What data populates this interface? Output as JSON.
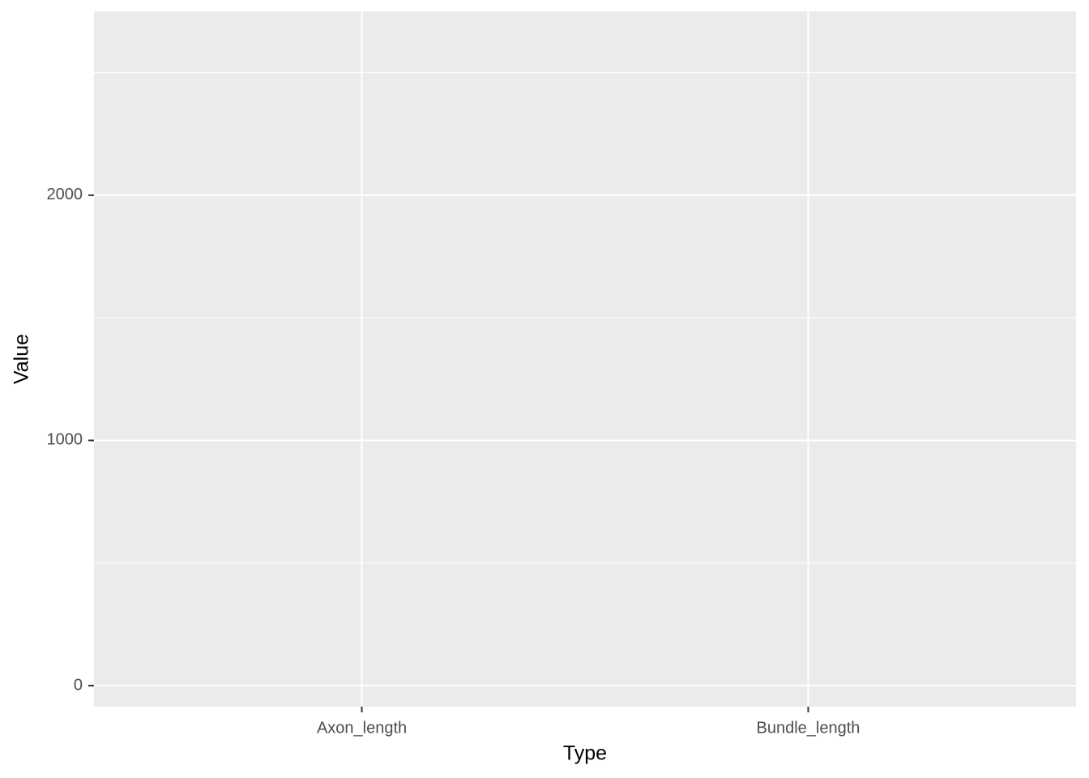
{
  "chart_data": {
    "type": "bar",
    "x_label": "Type",
    "y_label": "Value",
    "categories": [
      "Axon_length",
      "Bundle_length"
    ],
    "ylim": [
      -86,
      2750
    ],
    "yticks": [
      0,
      1000,
      2000
    ],
    "grid": true,
    "panel_color": "#ebebeb"
  }
}
